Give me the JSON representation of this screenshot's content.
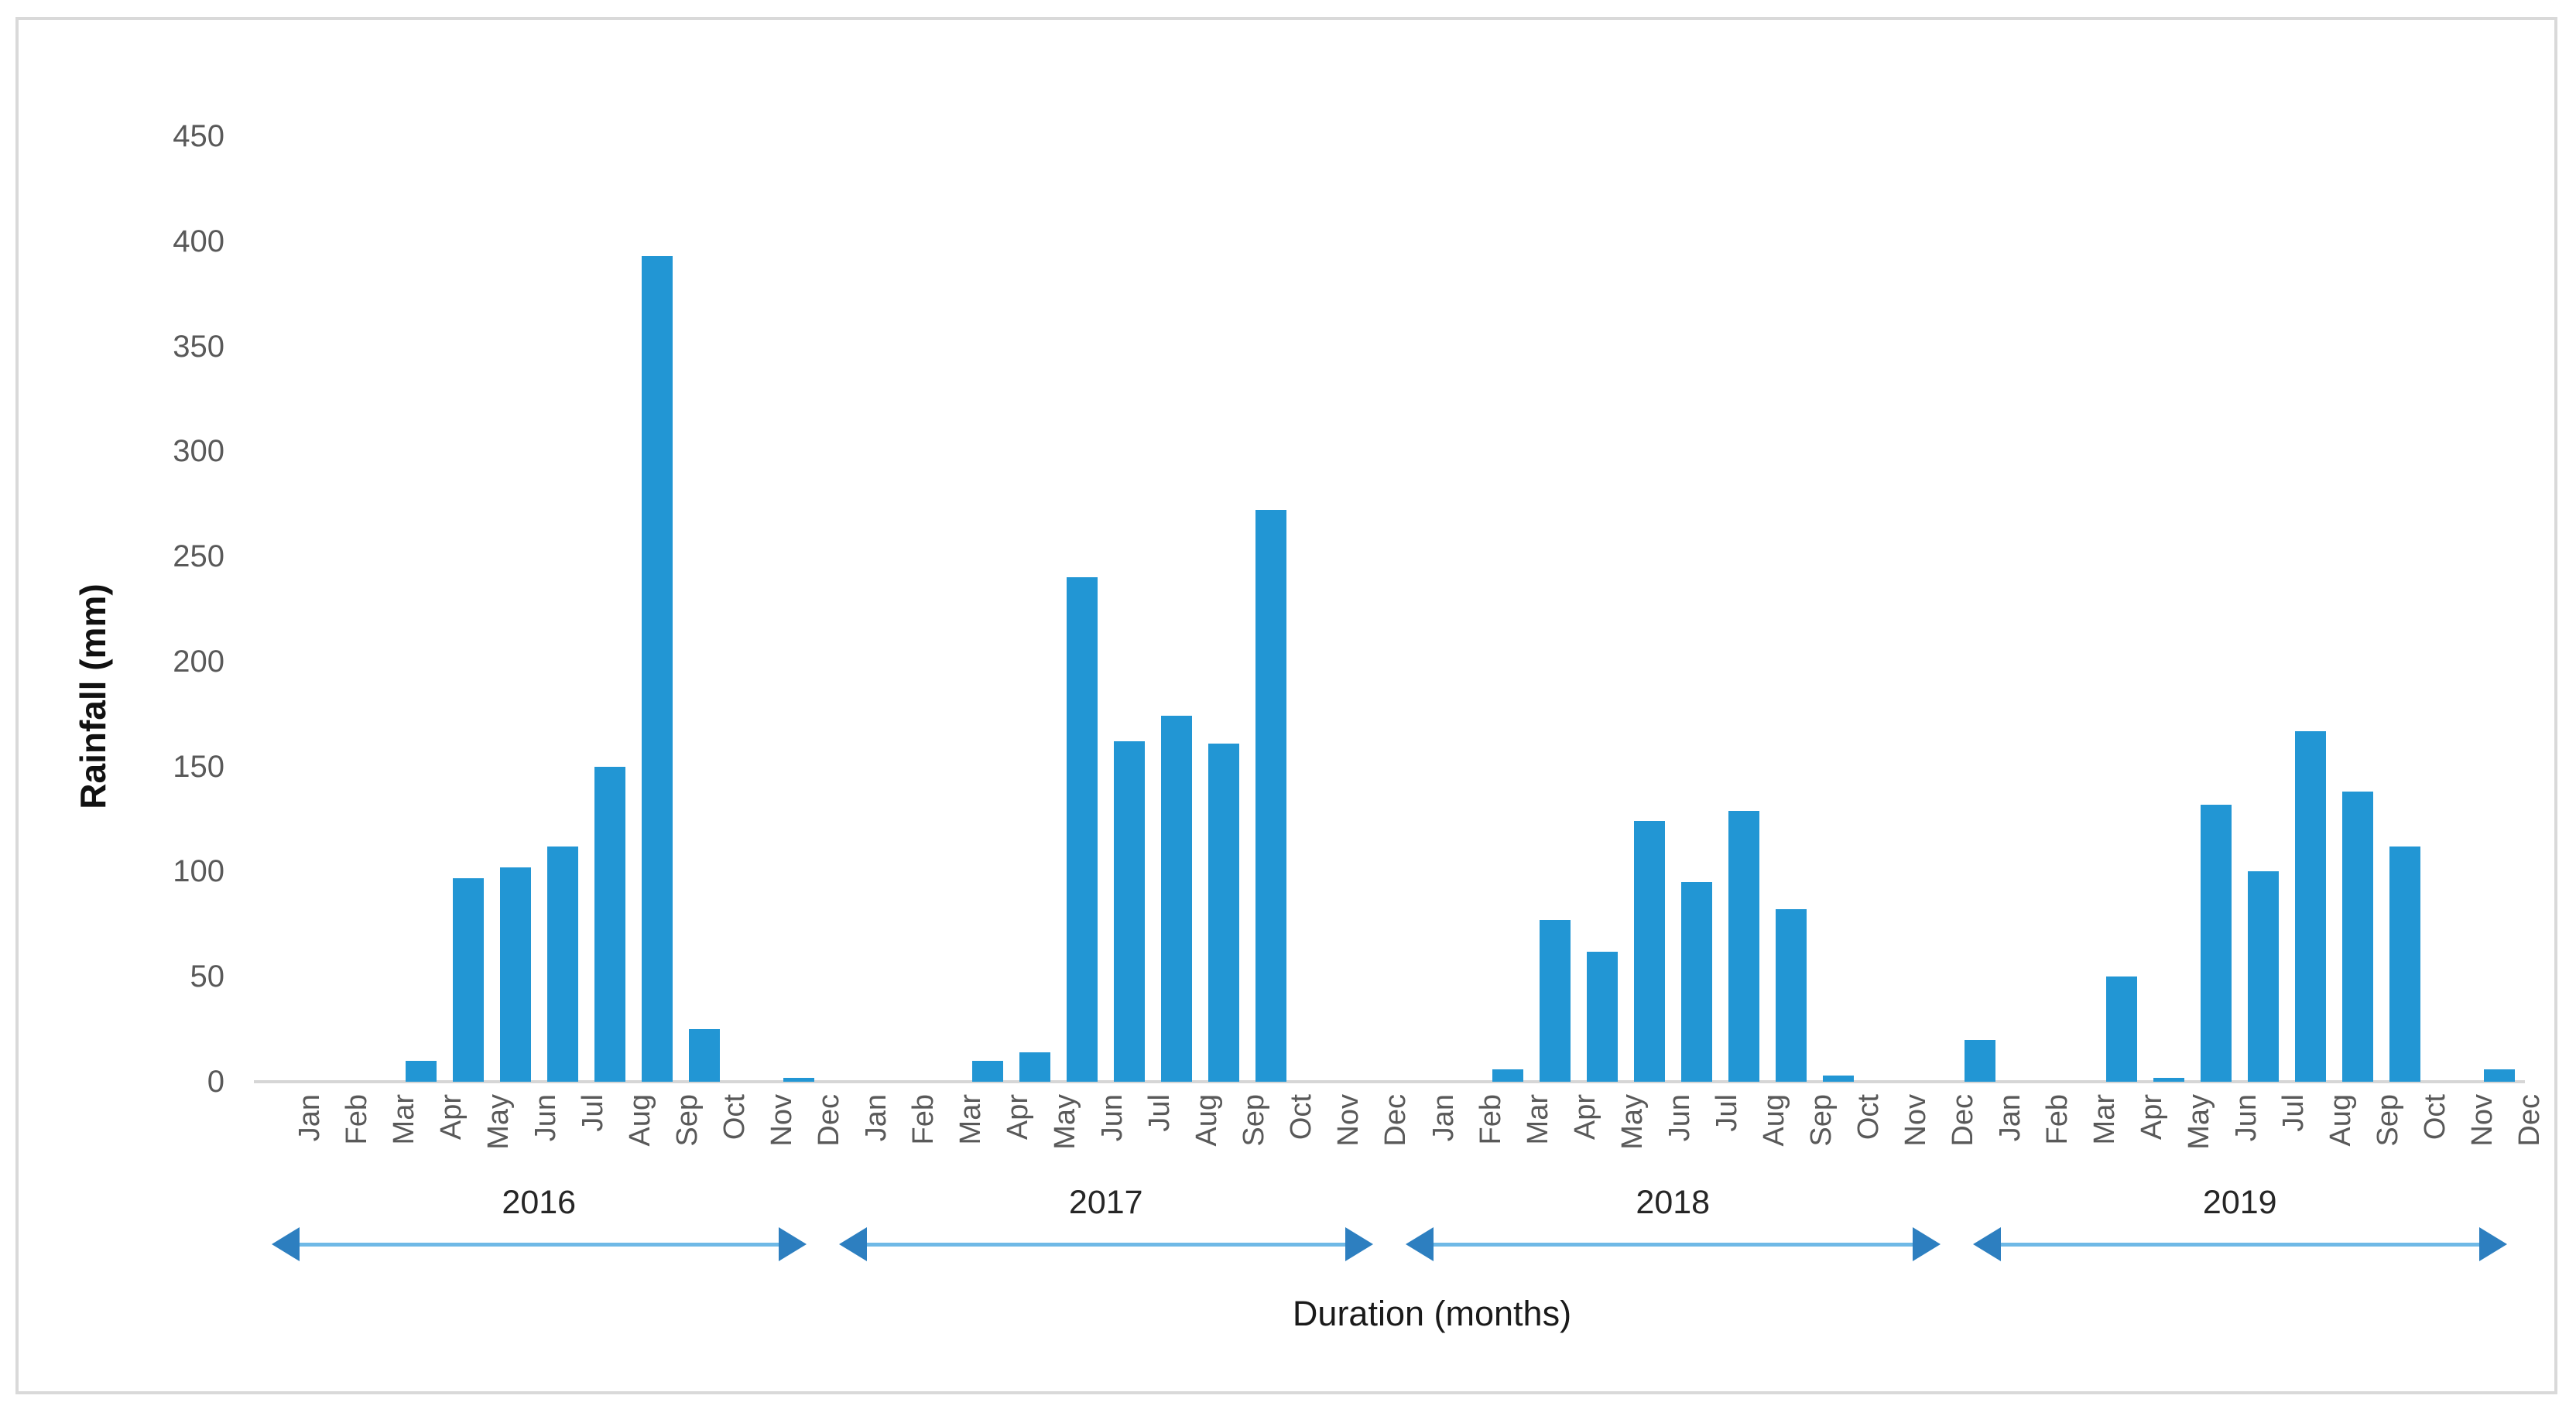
{
  "chart_data": {
    "type": "bar",
    "title": "",
    "xlabel": "Duration (months)",
    "ylabel": "Rainfall (mm)",
    "ylim": [
      0,
      450
    ],
    "ytick_step": 50,
    "yticks": [
      0,
      50,
      100,
      150,
      200,
      250,
      300,
      350,
      400,
      450
    ],
    "grid": false,
    "legend": "none",
    "months": [
      "Jan",
      "Feb",
      "Mar",
      "Apr",
      "May",
      "Jun",
      "Jul",
      "Aug",
      "Sep",
      "Oct",
      "Nov",
      "Dec"
    ],
    "series": [
      {
        "name": "2016",
        "values": [
          0,
          0,
          0,
          10,
          97,
          102,
          112,
          150,
          393,
          25,
          0,
          2
        ]
      },
      {
        "name": "2017",
        "values": [
          0,
          0,
          0,
          10,
          14,
          240,
          162,
          174,
          161,
          272,
          0,
          0
        ]
      },
      {
        "name": "2018",
        "values": [
          0,
          0,
          6,
          77,
          62,
          124,
          95,
          129,
          82,
          3,
          0,
          0
        ]
      },
      {
        "name": "2019",
        "values": [
          20,
          0,
          0,
          50,
          2,
          132,
          100,
          167,
          138,
          112,
          0,
          6
        ]
      }
    ]
  },
  "colors": {
    "bar": "#2296d4",
    "axis_line": "#d6d6d6",
    "tick_text": "#595959",
    "year_text": "#262626",
    "arrow_line": "#6fb9e6",
    "arrow_head": "#2d7fc0",
    "frame_border": "#d9d9d9",
    "background": "#ffffff"
  }
}
